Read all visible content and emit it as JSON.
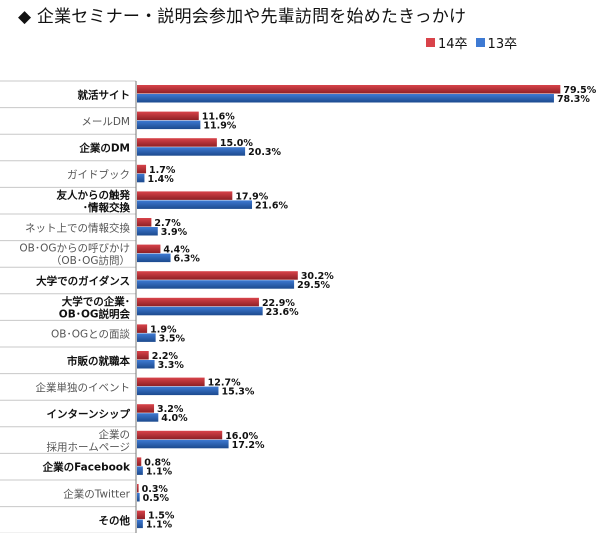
{
  "title": "企業セミナー・説明会参加や先輩訪問を始めたきっかけ",
  "title_marker": "◆",
  "colors": {
    "s14": "#d9434a",
    "s13": "#3e7ad3"
  },
  "chart_data": {
    "type": "bar",
    "orientation": "horizontal",
    "title": "企業セミナー・説明会参加や先輩訪問を始めたきっかけ",
    "legend_position": "top-right",
    "xlim": [
      0,
      80
    ],
    "categories": [
      {
        "label": [
          "就活サイト"
        ],
        "bold": true
      },
      {
        "label": [
          "メールDM"
        ],
        "bold": false
      },
      {
        "label": [
          "企業のDM"
        ],
        "bold": true
      },
      {
        "label": [
          "ガイドブック"
        ],
        "bold": false
      },
      {
        "label": [
          "友人からの触発",
          "･情報交換"
        ],
        "bold": true
      },
      {
        "label": [
          "ネット上での情報交換"
        ],
        "bold": false
      },
      {
        "label": [
          "OB･OGからの呼びかけ",
          "（OB･OG訪問）"
        ],
        "bold": false
      },
      {
        "label": [
          "大学でのガイダンス"
        ],
        "bold": true
      },
      {
        "label": [
          "大学での企業･",
          "OB･OG説明会"
        ],
        "bold": true
      },
      {
        "label": [
          "OB･OGとの面談"
        ],
        "bold": false
      },
      {
        "label": [
          "市販の就職本"
        ],
        "bold": true
      },
      {
        "label": [
          "企業単独のイベント"
        ],
        "bold": false
      },
      {
        "label": [
          "インターンシップ"
        ],
        "bold": true
      },
      {
        "label": [
          "企業の",
          "採用ホームページ"
        ],
        "bold": false
      },
      {
        "label": [
          "企業のFacebook"
        ],
        "bold": true
      },
      {
        "label": [
          "企業のTwitter"
        ],
        "bold": false
      },
      {
        "label": [
          "その他"
        ],
        "bold": true
      }
    ],
    "series": [
      {
        "name": "14卒",
        "values": [
          79.5,
          11.6,
          15.0,
          1.7,
          17.9,
          2.7,
          4.4,
          30.2,
          22.9,
          1.9,
          2.2,
          12.7,
          3.2,
          16.0,
          0.8,
          0.3,
          1.5
        ]
      },
      {
        "name": "13卒",
        "values": [
          78.3,
          11.9,
          20.3,
          1.4,
          21.6,
          3.9,
          6.3,
          29.5,
          23.6,
          3.5,
          3.3,
          15.3,
          4.0,
          17.2,
          1.1,
          0.5,
          1.1
        ]
      }
    ]
  }
}
